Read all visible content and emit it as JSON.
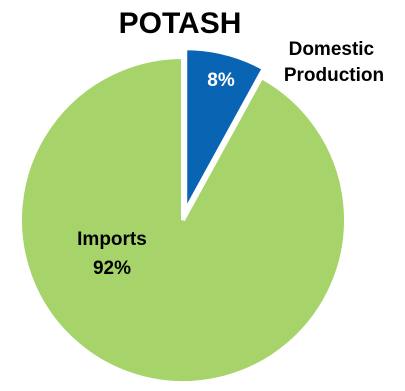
{
  "chart_data": {
    "type": "pie",
    "title": "POTASH",
    "slices": [
      {
        "label": [
          "Domestic",
          "Production"
        ],
        "value": 8,
        "value_label": "8%",
        "color": "#0A64B4",
        "exploded": true
      },
      {
        "label": [
          "Imports"
        ],
        "value": 92,
        "value_label": "92%",
        "color": "#A6D46A",
        "exploded": false
      }
    ],
    "slice_border_color": "#ffffff"
  }
}
